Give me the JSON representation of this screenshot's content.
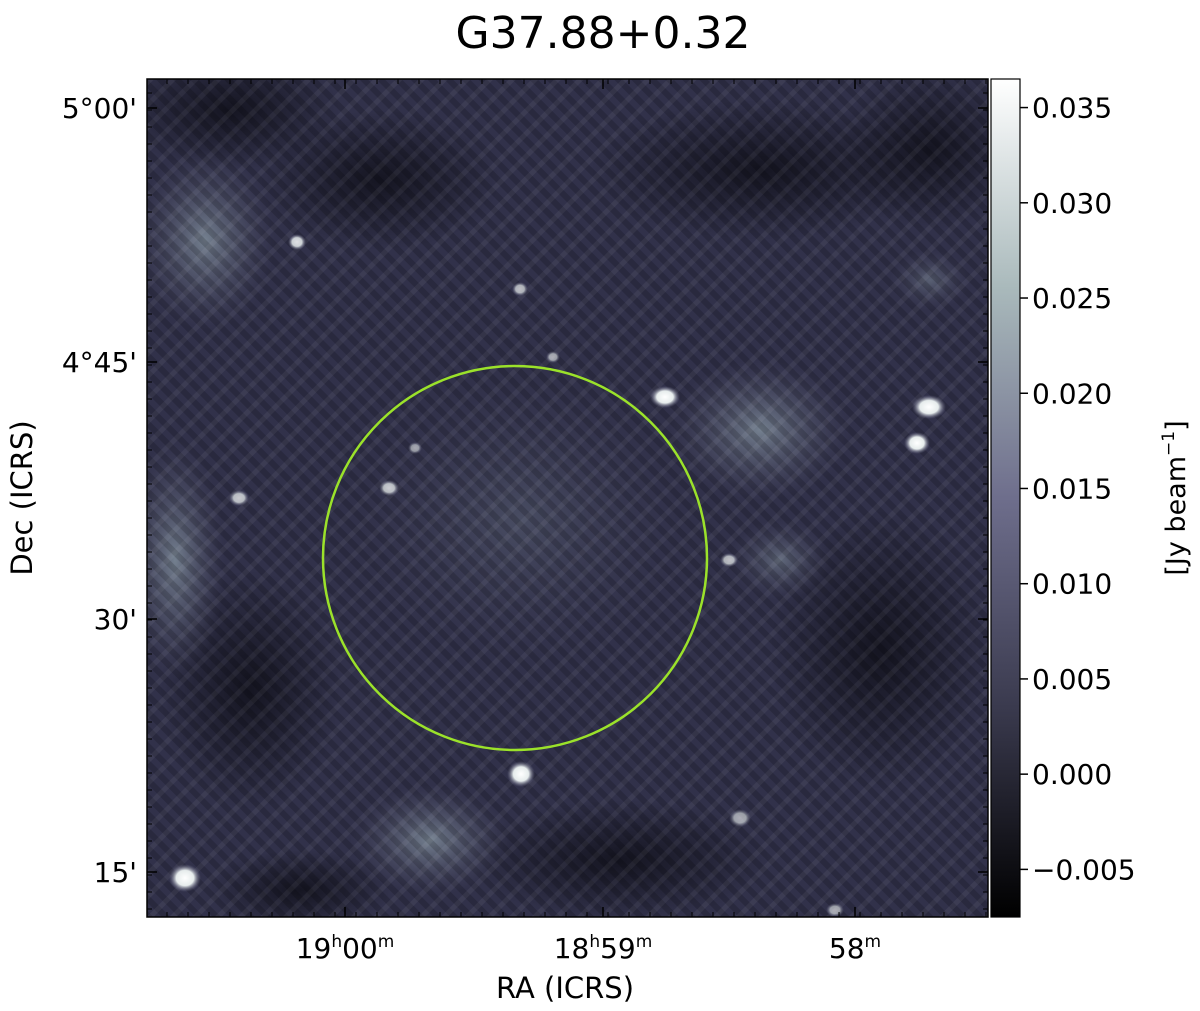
{
  "chart_data": {
    "type": "heatmap",
    "title": "G37.88+0.32",
    "xlabel": "RA (ICRS)",
    "ylabel": "Dec (ICRS)",
    "x_ticks": [
      {
        "label": "19h00m",
        "main": "19",
        "sup1": "h",
        "mid": "00",
        "sup2": "m"
      },
      {
        "label": "18h59m",
        "main": "18",
        "sup1": "h",
        "mid": "59",
        "sup2": "m"
      },
      {
        "label": "58m",
        "main": "58",
        "sup1": "m",
        "mid": "",
        "sup2": ""
      }
    ],
    "y_ticks": [
      "5°00'",
      "4°45'",
      "30'",
      "15'"
    ],
    "colorbar": {
      "label": "[Jy beam",
      "label_sup": "−1",
      "label_close": "]",
      "range": [
        -0.0075,
        0.0365
      ],
      "ticks": [
        {
          "value": 0.035,
          "label": "0.035"
        },
        {
          "value": 0.03,
          "label": "0.030"
        },
        {
          "value": 0.025,
          "label": "0.025"
        },
        {
          "value": 0.02,
          "label": "0.020"
        },
        {
          "value": 0.015,
          "label": "0.015"
        },
        {
          "value": 0.01,
          "label": "0.010"
        },
        {
          "value": 0.005,
          "label": "0.005"
        },
        {
          "value": 0.0,
          "label": "0.000"
        },
        {
          "value": -0.005,
          "label": "−0.005"
        }
      ],
      "colormap": [
        "#000000",
        "#3a3a4e",
        "#6e6e8c",
        "#a9b9bb",
        "#ffffff"
      ]
    },
    "circle_color": "#9be22a",
    "grid": false
  }
}
